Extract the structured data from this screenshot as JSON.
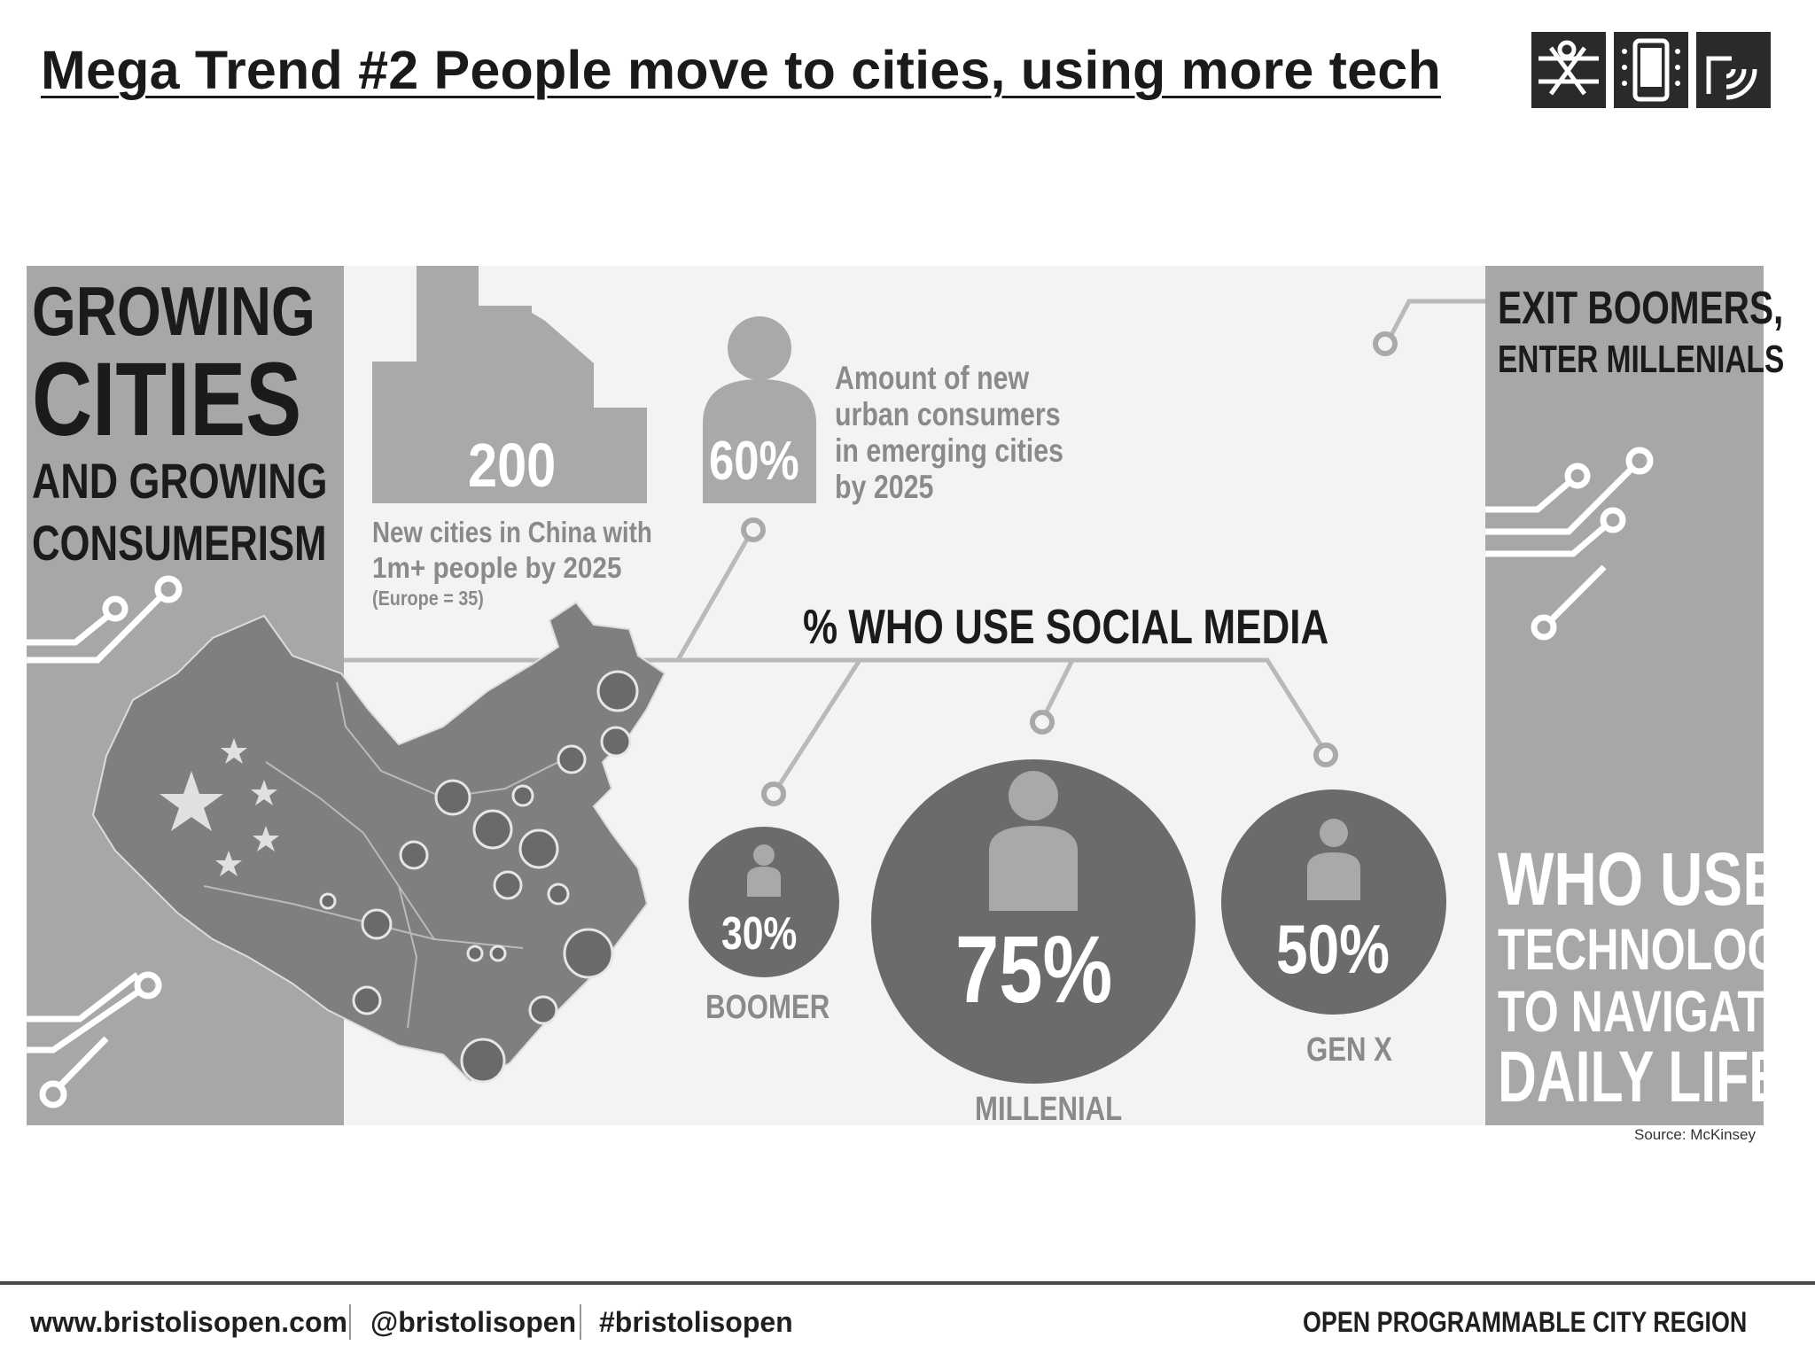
{
  "slide": {
    "title": "Mega Trend #2 People move to cities,  using more tech"
  },
  "logo": {
    "icons": [
      "city-map-icon",
      "smartphone-icon",
      "signal-icon"
    ]
  },
  "infographic": {
    "left_panel": {
      "line1": "GROWING",
      "line2": "CITIES",
      "line3": "AND GROWING",
      "line4": "CONSUMERISM"
    },
    "new_cities": {
      "value": "200",
      "line1": "New cities in China with",
      "line2": "1m+ people by 2025",
      "note": "(Europe = 35)"
    },
    "consumers": {
      "value": "60%",
      "line1": "Amount of new",
      "line2": "urban consumers",
      "line3": "in emerging cities",
      "line4": "by 2025"
    },
    "social_media": {
      "heading": "% WHO USE SOCIAL MEDIA",
      "groups": [
        {
          "label": "BOOMER",
          "value": "30%"
        },
        {
          "label": "MILLENIAL",
          "value": "75%"
        },
        {
          "label": "GEN X",
          "value": "50%"
        }
      ]
    },
    "right_panel": {
      "top1": "EXIT BOOMERS,",
      "top2": "ENTER MILLENIALS",
      "b1": "WHO USE",
      "b2": "TECHNOLOGY",
      "b3": "TO NAVIGATE",
      "b4": "DAILY LIFE"
    },
    "source": "Source: McKinsey"
  },
  "footer": {
    "website": "www.bristolisopen.com",
    "twitter": "@bristolisopen",
    "hashtag": "#bristolisopen",
    "tagline": "OPEN PROGRAMMABLE CITY REGION"
  }
}
